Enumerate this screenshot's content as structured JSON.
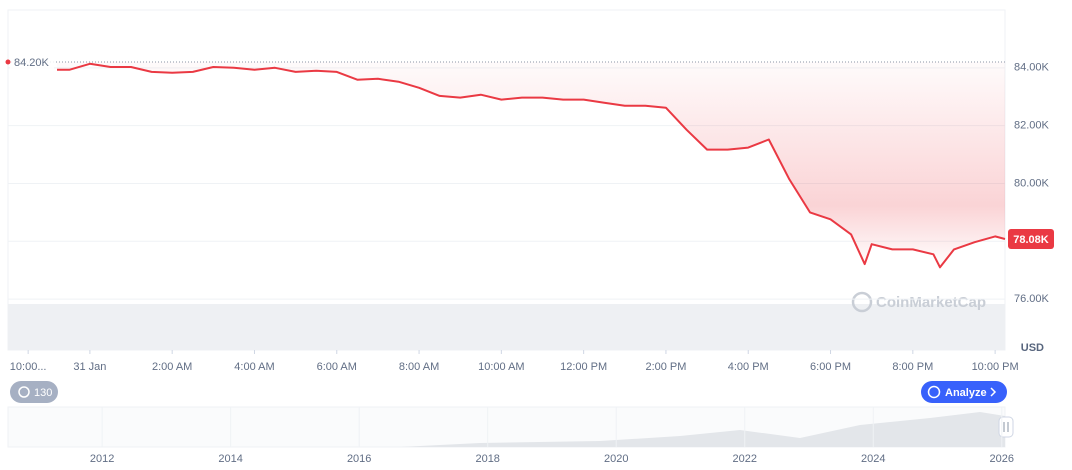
{
  "chart_data": {
    "type": "line",
    "color": "#ea3943",
    "x": [
      -0.8,
      -0.5,
      0,
      0.5,
      1,
      1.5,
      2,
      2.5,
      3,
      3.5,
      4,
      4.5,
      5,
      5.5,
      6,
      6.5,
      7,
      7.5,
      8,
      8.5,
      9,
      9.5,
      10,
      10.5,
      11,
      11.5,
      12,
      12.5,
      13,
      13.5,
      14,
      14.5,
      15,
      15.5,
      16,
      16.5,
      17,
      17.5,
      18,
      18.5,
      18.83,
      19,
      19.5,
      20,
      20.5,
      20.66,
      21,
      21.5,
      22,
      22.24
    ],
    "values": [
      83930,
      83930,
      84140,
      84030,
      84030,
      83860,
      83830,
      83860,
      84030,
      84000,
      83930,
      84000,
      83860,
      83900,
      83860,
      83590,
      83620,
      83520,
      83310,
      83030,
      82970,
      83070,
      82900,
      82970,
      82970,
      82900,
      82900,
      82790,
      82690,
      82690,
      82620,
      81860,
      81170,
      81170,
      81240,
      81520,
      80140,
      79000,
      78760,
      78240,
      77210,
      77900,
      77720,
      77720,
      77550,
      77100,
      77720,
      77970,
      78170,
      78080
    ],
    "xlim": [
      -1.99,
      22.24
    ],
    "xticks": [
      {
        "value": -1.5,
        "label": "10:00..."
      },
      {
        "value": 0,
        "label": "31 Jan"
      },
      {
        "value": 2,
        "label": "2:00 AM"
      },
      {
        "value": 4,
        "label": "4:00 AM"
      },
      {
        "value": 6,
        "label": "6:00 AM"
      },
      {
        "value": 8,
        "label": "8:00 AM"
      },
      {
        "value": 10,
        "label": "10:00 AM"
      },
      {
        "value": 12,
        "label": "12:00 PM"
      },
      {
        "value": 14,
        "label": "2:00 PM"
      },
      {
        "value": 16,
        "label": "4:00 PM"
      },
      {
        "value": 18,
        "label": "6:00 PM"
      },
      {
        "value": 20,
        "label": "8:00 PM"
      },
      {
        "value": 22,
        "label": "10:00 PM"
      }
    ],
    "ylim": [
      74240,
      86000
    ],
    "yticks": [
      {
        "value": 76000,
        "label": "76.00K"
      },
      {
        "value": 78000,
        "label": "78.00K"
      },
      {
        "value": 80000,
        "label": "80.00K"
      },
      {
        "value": 82000,
        "label": "82.00K"
      },
      {
        "value": 84000,
        "label": "84.00K"
      }
    ],
    "y_unit": "USD",
    "grid": true,
    "reference_price": {
      "value": 84200,
      "label": "84.20K"
    },
    "current_price": {
      "value": 78080,
      "label": "78.08K"
    },
    "watermark": "CoinMarketCap",
    "badge": "130",
    "button": "Analyze",
    "navigator_xlim": [
      2010.535,
      2026.05
    ],
    "navigator_xticks": [
      2012,
      2014,
      2016,
      2018,
      2020,
      2022,
      2024,
      2026
    ]
  }
}
